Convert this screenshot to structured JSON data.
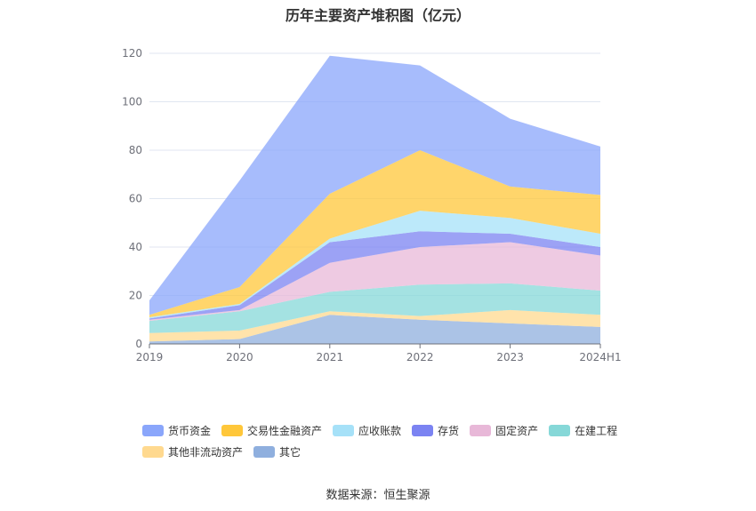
{
  "chart_data": {
    "type": "area",
    "stacked": true,
    "title": "历年主要资产堆积图（亿元）",
    "categories": [
      "2019",
      "2020",
      "2021",
      "2022",
      "2023",
      "2024H1"
    ],
    "ylim": [
      0,
      120
    ],
    "yticks": [
      0,
      20,
      40,
      60,
      80,
      100,
      120
    ],
    "grid": true,
    "legend_position": "bottom",
    "series": [
      {
        "name": "其它",
        "color": "#8fafde",
        "values": [
          1,
          2,
          12,
          10,
          8.5,
          7
        ]
      },
      {
        "name": "其他非流动资产",
        "color": "#ffd98f",
        "values": [
          3.5,
          3.5,
          1.5,
          1.5,
          5.5,
          5
        ]
      },
      {
        "name": "在建工程",
        "color": "#86d8d8",
        "values": [
          5,
          8,
          8,
          13,
          11,
          10
        ]
      },
      {
        "name": "固定资产",
        "color": "#e8b8d8",
        "values": [
          0.5,
          0.5,
          12,
          15.5,
          17,
          14.5
        ]
      },
      {
        "name": "存货",
        "color": "#7b83f2",
        "values": [
          0.5,
          2,
          8.5,
          6.5,
          3.5,
          3.5
        ]
      },
      {
        "name": "应收账款",
        "color": "#a6e1f8",
        "values": [
          0.5,
          0.5,
          1.5,
          8.5,
          6.5,
          5.5
        ]
      },
      {
        "name": "交易性金融资产",
        "color": "#ffc73a",
        "values": [
          1,
          7,
          18.5,
          25,
          13,
          16
        ]
      },
      {
        "name": "货币资金",
        "color": "#8aa6fb",
        "values": [
          6,
          44,
          57,
          35,
          28,
          20
        ]
      }
    ],
    "legend_order": [
      "货币资金",
      "交易性金融资产",
      "应收账款",
      "存货",
      "固定资产",
      "在建工程",
      "其他非流动资产",
      "其它"
    ]
  },
  "source_text": "数据来源：恒生聚源"
}
